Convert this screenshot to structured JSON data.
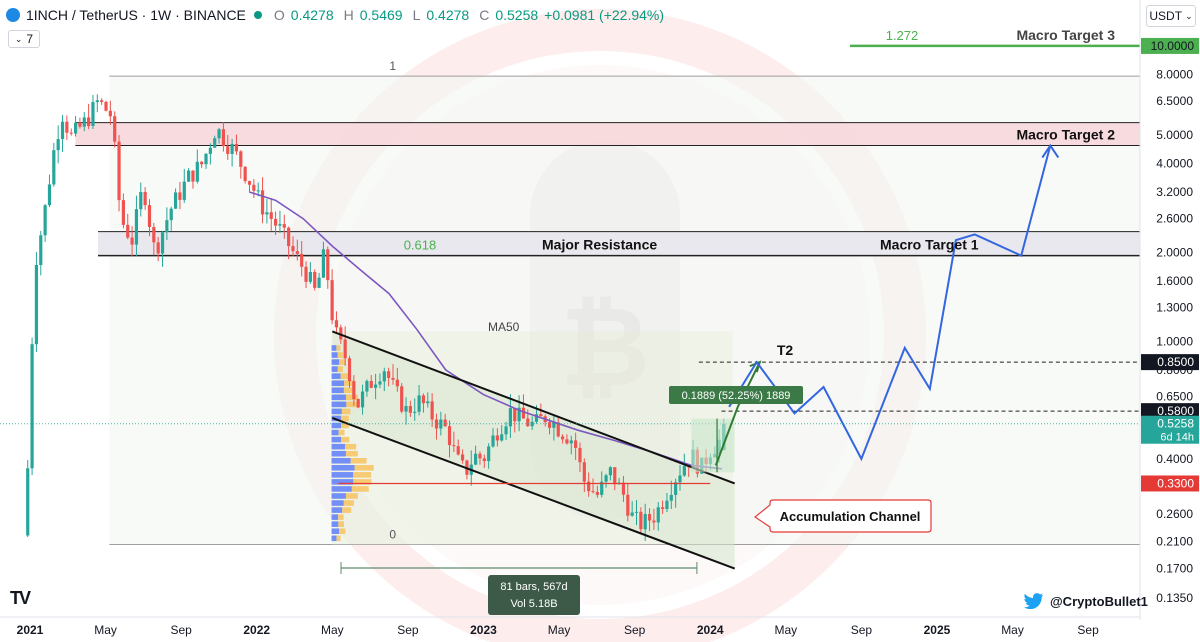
{
  "header": {
    "symbol": "1INCH / TetherUS · 1W · BINANCE",
    "o_label": "O",
    "o_value": "0.4278",
    "h_label": "H",
    "h_value": "0.5469",
    "l_label": "L",
    "l_value": "0.4278",
    "c_label": "C",
    "c_value": "0.5258",
    "change": "+0.0981 (+22.94%)",
    "interval_count": "7",
    "currency": "USDT"
  },
  "footer": {
    "twitter_handle": "@CryptoBullet1"
  },
  "colors": {
    "up": "#26a69a",
    "down": "#ef5350",
    "ma": "#7e57c2",
    "projection": "#3366e0",
    "target_green": "#4caf50",
    "background_circle": "#ef5350",
    "resistance_zone": "#e8e8ee",
    "target2_zone": "#f7d7da"
  },
  "chart_data": {
    "type": "candlestick",
    "title": "",
    "scale": "log",
    "ylim": [
      0.125,
      11.5
    ],
    "y_ticks": [
      "8.0000",
      "6.5000",
      "5.0000",
      "4.0000",
      "3.2000",
      "2.6000",
      "2.0000",
      "1.6000",
      "1.3000",
      "1.0000",
      "0.8000",
      "0.6500",
      "0.5000",
      "0.4000",
      "0.2600",
      "0.2100",
      "0.1700",
      "0.1350"
    ],
    "x_ticks": [
      "2021",
      "May",
      "Sep",
      "2022",
      "May",
      "Sep",
      "2023",
      "May",
      "Sep",
      "2024",
      "May",
      "Sep",
      "2025",
      "May",
      "Sep"
    ],
    "x_tick_dates": [
      "2021-01",
      "2021-05",
      "2021-09",
      "2022-01",
      "2022-05",
      "2022-09",
      "2023-01",
      "2023-05",
      "2023-09",
      "2024-01",
      "2024-05",
      "2024-09",
      "2025-01",
      "2025-05",
      "2025-09"
    ],
    "price_labels": [
      {
        "value": 10.0,
        "text": "10.0000",
        "style": "target"
      },
      {
        "value": 0.85,
        "text": "0.8500",
        "style": "dark"
      },
      {
        "value": 0.58,
        "text": "0.5800",
        "style": "dark"
      },
      {
        "value": 0.5258,
        "text": "0.5258",
        "sub": "6d 14h",
        "style": "current"
      },
      {
        "value": 0.33,
        "text": "0.3300",
        "style": "red"
      }
    ],
    "levels": [
      {
        "name": "Macro Target 3",
        "value": 10.0,
        "fib": "1.272"
      },
      {
        "name": "Macro Target 2",
        "low": 4.6,
        "high": 5.5
      },
      {
        "name": "Major Resistance",
        "low": 1.95,
        "high": 2.35,
        "fib": "0.618"
      },
      {
        "name": "Macro Target 1",
        "value": 2.2
      },
      {
        "name": "T2",
        "value": 0.85
      },
      {
        "name": "fib_1",
        "value": 7.9,
        "fib": "1"
      },
      {
        "name": "fib_0",
        "value": 0.205,
        "fib": "0"
      },
      {
        "name": "line_058",
        "value": 0.58
      },
      {
        "name": "poc",
        "value": 0.33
      }
    ],
    "labels": {
      "fib1": "1",
      "fib0": "0",
      "fib618": "0.618",
      "fib1272": "1.272",
      "major_resistance": "Major Resistance",
      "macro_target_1": "Macro Target 1",
      "macro_target_2": "Macro Target 2",
      "macro_target_3": "Macro Target 3",
      "t2": "T2",
      "ma50": "MA50",
      "accumulation_channel": "Accumulation Channel",
      "measure": "0.1889 (52.25%) 1889",
      "range_bars": "81 bars, 567d",
      "range_vol": "Vol 5.18B"
    },
    "channel": {
      "upper": [
        [
          "2022-05-01",
          1.08
        ],
        [
          "2024-02-10",
          0.33
        ]
      ],
      "lower": [
        [
          "2022-05-01",
          0.55
        ],
        [
          "2024-02-10",
          0.17
        ]
      ]
    },
    "ma50": [
      [
        "2021-12-20",
        3.2
      ],
      [
        "2022-02-01",
        3.0
      ],
      [
        "2022-03-15",
        2.6
      ],
      [
        "2022-05-01",
        2.1
      ],
      [
        "2022-06-15",
        1.75
      ],
      [
        "2022-08-01",
        1.45
      ],
      [
        "2022-09-15",
        1.1
      ],
      [
        "2022-11-01",
        0.8
      ],
      [
        "2023-01-01",
        0.66
      ],
      [
        "2023-03-01",
        0.58
      ],
      [
        "2023-06-01",
        0.5
      ],
      [
        "2023-08-01",
        0.46
      ],
      [
        "2023-10-01",
        0.42
      ],
      [
        "2023-12-01",
        0.38
      ],
      [
        "2024-01-20",
        0.37
      ]
    ],
    "projection": [
      [
        "2024-02-01",
        0.6
      ],
      [
        "2024-03-15",
        0.85
      ],
      [
        "2024-05-15",
        0.57
      ],
      [
        "2024-07-01",
        0.7
      ],
      [
        "2024-09-01",
        0.4
      ],
      [
        "2024-11-10",
        0.95
      ],
      [
        "2024-12-20",
        0.69
      ],
      [
        "2025-02-01",
        2.2
      ],
      [
        "2025-03-01",
        2.3
      ],
      [
        "2025-05-15",
        1.95
      ],
      [
        "2025-07-01",
        4.6
      ]
    ],
    "short_projection": [
      [
        "2024-01-10",
        0.38
      ],
      [
        "2024-02-15",
        0.6
      ],
      [
        "2024-03-20",
        0.85
      ]
    ],
    "measure_range": {
      "x_start": "2023-12-01",
      "x_end": "2024-02-10",
      "low": 0.36,
      "high": 0.5469
    },
    "date_range": {
      "x_start": "2022-05-15",
      "x_end": "2023-12-10"
    },
    "last_bar": {
      "o": 0.4278,
      "h": 0.5469,
      "l": 0.4278,
      "c": 0.5258
    }
  }
}
